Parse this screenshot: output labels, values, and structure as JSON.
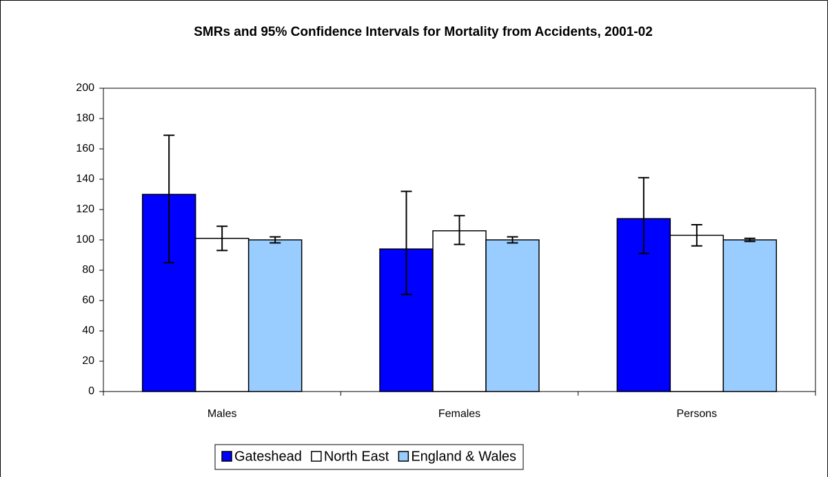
{
  "chart_data": {
    "type": "bar",
    "title": "SMRs and 95% Confidence Intervals for Mortality from Accidents, 2001-02",
    "categories": [
      "Males",
      "Females",
      "Persons"
    ],
    "series": [
      {
        "name": "Gateshead",
        "color": "#0000ff",
        "values": [
          130,
          94,
          114
        ],
        "ci_low": [
          85,
          64,
          91
        ],
        "ci_high": [
          169,
          132,
          141
        ]
      },
      {
        "name": "North East",
        "color": "#ffffff",
        "values": [
          101,
          106,
          103
        ],
        "ci_low": [
          93,
          97,
          96
        ],
        "ci_high": [
          109,
          116,
          110
        ]
      },
      {
        "name": "England & Wales",
        "color": "#99ccff",
        "values": [
          100,
          100,
          100
        ],
        "ci_low": [
          98,
          98,
          99
        ],
        "ci_high": [
          102,
          102,
          101
        ]
      }
    ],
    "ylim": [
      0,
      200
    ],
    "yticks": [
      0,
      20,
      40,
      60,
      80,
      100,
      120,
      140,
      160,
      180,
      200
    ],
    "legend": "bottom"
  }
}
